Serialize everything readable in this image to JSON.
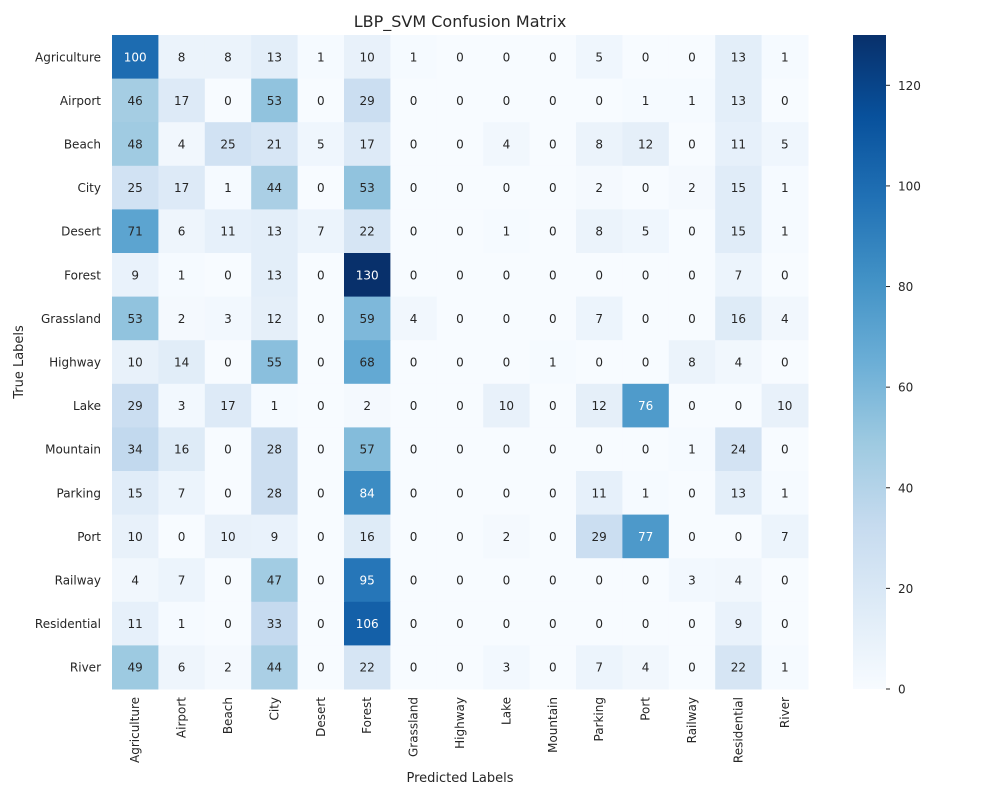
{
  "chart_data": {
    "type": "heatmap",
    "title": "LBP_SVM Confusion Matrix",
    "xlabel": "Predicted Labels",
    "ylabel": "True Labels",
    "categories": [
      "Agriculture",
      "Airport",
      "Beach",
      "City",
      "Desert",
      "Forest",
      "Grassland",
      "Highway",
      "Lake",
      "Mountain",
      "Parking",
      "Port",
      "Railway",
      "Residential",
      "River"
    ],
    "matrix": [
      [
        100,
        8,
        8,
        13,
        1,
        10,
        1,
        0,
        0,
        0,
        5,
        0,
        0,
        13,
        1
      ],
      [
        46,
        17,
        0,
        53,
        0,
        29,
        0,
        0,
        0,
        0,
        0,
        1,
        1,
        13,
        0
      ],
      [
        48,
        4,
        25,
        21,
        5,
        17,
        0,
        0,
        4,
        0,
        8,
        12,
        0,
        11,
        5
      ],
      [
        25,
        17,
        1,
        44,
        0,
        53,
        0,
        0,
        0,
        0,
        2,
        0,
        2,
        15,
        1
      ],
      [
        71,
        6,
        11,
        13,
        7,
        22,
        0,
        0,
        1,
        0,
        8,
        5,
        0,
        15,
        1
      ],
      [
        9,
        1,
        0,
        13,
        0,
        130,
        0,
        0,
        0,
        0,
        0,
        0,
        0,
        7,
        0
      ],
      [
        53,
        2,
        3,
        12,
        0,
        59,
        4,
        0,
        0,
        0,
        7,
        0,
        0,
        16,
        4
      ],
      [
        10,
        14,
        0,
        55,
        0,
        68,
        0,
        0,
        0,
        1,
        0,
        0,
        8,
        4,
        0
      ],
      [
        29,
        3,
        17,
        1,
        0,
        2,
        0,
        0,
        10,
        0,
        12,
        76,
        0,
        0,
        10
      ],
      [
        34,
        16,
        0,
        28,
        0,
        57,
        0,
        0,
        0,
        0,
        0,
        0,
        1,
        24,
        0
      ],
      [
        15,
        7,
        0,
        28,
        0,
        84,
        0,
        0,
        0,
        0,
        11,
        1,
        0,
        13,
        1
      ],
      [
        10,
        0,
        10,
        9,
        0,
        16,
        0,
        0,
        2,
        0,
        29,
        77,
        0,
        0,
        7
      ],
      [
        4,
        7,
        0,
        47,
        0,
        95,
        0,
        0,
        0,
        0,
        0,
        0,
        3,
        4,
        0
      ],
      [
        11,
        1,
        0,
        33,
        0,
        106,
        0,
        0,
        0,
        0,
        0,
        0,
        0,
        9,
        0
      ],
      [
        49,
        6,
        2,
        44,
        0,
        22,
        0,
        0,
        3,
        0,
        7,
        4,
        0,
        22,
        1
      ]
    ],
    "colorbar": {
      "range": [
        0,
        130
      ],
      "ticks": [
        0,
        20,
        40,
        60,
        80,
        100,
        120
      ]
    },
    "colormap": "Blues",
    "colors": {
      "low": "#f7fbff",
      "high": "#08306b",
      "text_dark": "#262626",
      "text_light": "#ffffff"
    }
  }
}
